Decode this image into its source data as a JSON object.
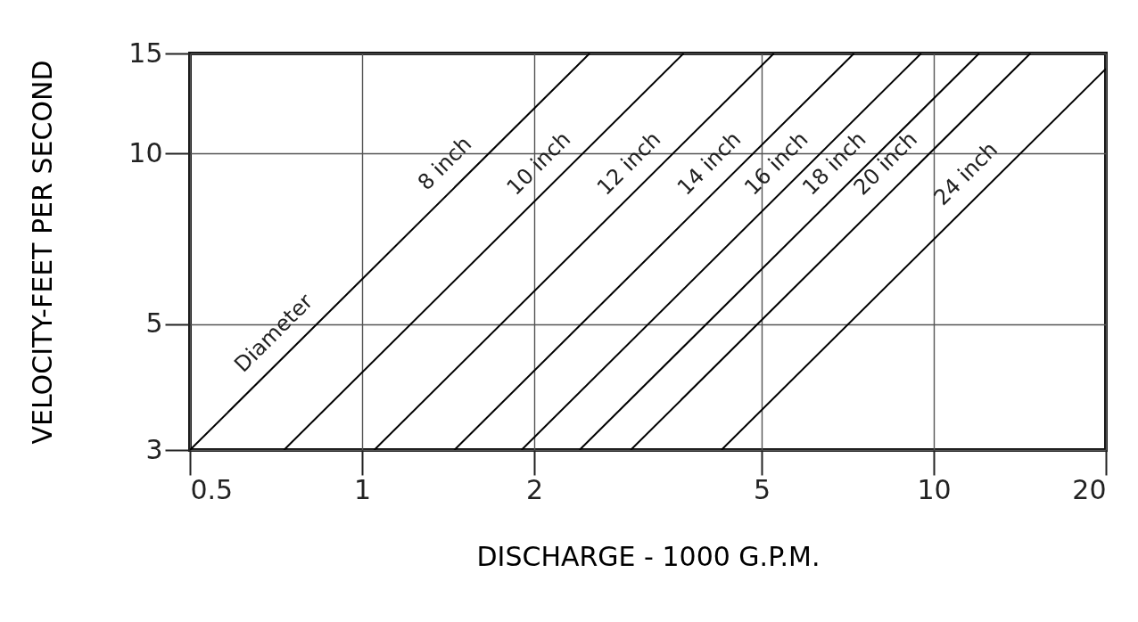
{
  "chart_data": {
    "type": "line",
    "xlabel": "DISCHARGE - 1000 G.P.M.",
    "ylabel": "VELOCITY-FEET PER SECOND",
    "log": "xy",
    "grid": true,
    "marker": "none",
    "line_style": "solid",
    "xlim": [
      0.5,
      20
    ],
    "ylim": [
      3,
      15
    ],
    "xticks": [
      0.5,
      1,
      2,
      5,
      10,
      20
    ],
    "yticks": [
      3,
      5,
      10,
      15
    ],
    "series": [
      {
        "name": "8 inch",
        "color": "#000000",
        "x": [
          0.5,
          2.5
        ],
        "values": [
          3,
          15
        ]
      },
      {
        "name": "10 inch",
        "color": "#000000",
        "x": [
          0.73,
          3.65
        ],
        "values": [
          3,
          15
        ]
      },
      {
        "name": "12 inch",
        "color": "#000000",
        "x": [
          1.05,
          5.25
        ],
        "values": [
          3,
          15
        ]
      },
      {
        "name": "14 inch",
        "color": "#000000",
        "x": [
          1.45,
          7.25
        ],
        "values": [
          3,
          15
        ]
      },
      {
        "name": "16 inch",
        "color": "#000000",
        "x": [
          1.9,
          9.5
        ],
        "values": [
          3,
          15
        ]
      },
      {
        "name": "18 inch",
        "color": "#000000",
        "x": [
          2.4,
          12
        ],
        "values": [
          3,
          15
        ]
      },
      {
        "name": "20 inch",
        "color": "#000000",
        "x": [
          2.95,
          14.75
        ],
        "values": [
          3,
          15
        ]
      },
      {
        "name": "24 inch",
        "color": "#000000",
        "x": [
          4.25,
          20
        ],
        "values": [
          3,
          14.1
        ]
      }
    ],
    "annotations": [
      {
        "text": "Diameter",
        "x": 0.75,
        "y": 4.5
      }
    ]
  }
}
